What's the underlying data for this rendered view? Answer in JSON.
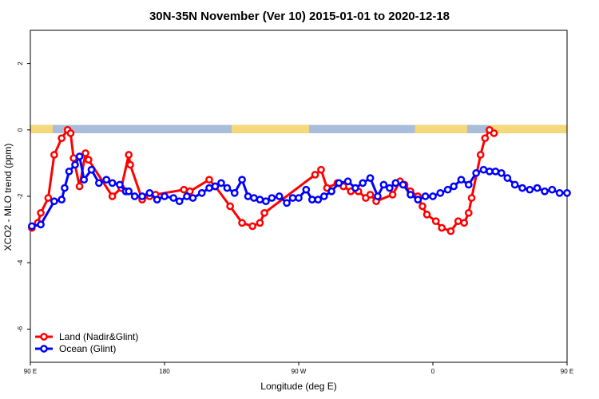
{
  "chart_data": {
    "type": "line",
    "title": "30N-35N November (Ver 10)   2015-01-01 to 2020-12-18",
    "xlabel": "Longitude (deg E)",
    "ylabel": "XCO2 - MLO trend (ppm)",
    "xlim": [
      90,
      450
    ],
    "ylim": [
      -7,
      3
    ],
    "x_ticks": [
      {
        "value": 90,
        "label": "90 E"
      },
      {
        "value": 180,
        "label": "180"
      },
      {
        "value": 270,
        "label": "90 W"
      },
      {
        "value": 360,
        "label": "0"
      },
      {
        "value": 450,
        "label": "90 E"
      },
      {
        "value": 540,
        "label": "180"
      }
    ],
    "y_ticks": [
      {
        "value": 2,
        "label": "2"
      },
      {
        "value": 0,
        "label": "0"
      },
      {
        "value": -2,
        "label": "-2"
      },
      {
        "value": -4,
        "label": "-4"
      },
      {
        "value": -6,
        "label": "-6"
      }
    ],
    "legend_position": "bottom-left",
    "grid": false,
    "surface_band": {
      "y_range": [
        -0.1,
        0.15
      ],
      "land_color": "#f5d87a",
      "ocean_color": "#a9bcd9",
      "land_segments": [
        [
          90,
          105
        ],
        [
          225,
          277
        ],
        [
          348,
          383
        ],
        [
          398,
          466
        ],
        [
          524,
          552
        ],
        [
          583,
          635
        ],
        [
          648,
          656
        ]
      ]
    },
    "series": [
      {
        "name": "Land (Nadir&Glint)",
        "color": "#ff0000",
        "x": [
          91,
          95,
          97,
          102,
          106,
          111,
          115,
          117,
          119,
          123,
          127,
          129,
          145,
          151,
          156,
          157,
          165,
          170,
          174,
          193,
          197,
          210,
          214,
          224,
          232,
          239,
          244,
          247,
          281,
          285,
          289,
          296,
          300,
          305,
          310,
          315,
          318,
          322,
          333,
          338,
          341,
          345,
          350,
          353,
          356,
          362,
          366,
          372,
          377,
          381,
          384,
          386,
          392,
          395,
          398,
          401
        ],
        "y": [
          -2.95,
          -2.8,
          -2.5,
          -2.05,
          -0.75,
          -0.25,
          0.0,
          -0.1,
          -0.85,
          -1.7,
          -0.7,
          -0.9,
          -2.0,
          -1.75,
          -0.75,
          -1.05,
          -2.1,
          -2.0,
          -1.95,
          -1.8,
          -1.85,
          -1.5,
          -1.7,
          -2.3,
          -2.8,
          -2.9,
          -2.8,
          -2.5,
          -1.35,
          -1.2,
          -1.75,
          -1.6,
          -1.7,
          -1.85,
          -1.85,
          -2.05,
          -1.95,
          -2.15,
          -1.95,
          -1.55,
          -1.65,
          -1.85,
          -2.0,
          -2.3,
          -2.55,
          -2.75,
          -2.95,
          -3.05,
          -2.75,
          -2.8,
          -2.5,
          -2.05,
          -0.75,
          -0.25,
          0.0,
          -0.1
        ]
      },
      {
        "name": "Ocean (Glint)",
        "color": "#0000ff",
        "x": [
          91,
          97,
          106,
          111,
          113,
          116,
          120,
          123,
          126,
          131,
          136,
          141,
          145,
          150,
          154,
          156,
          160,
          165,
          170,
          175,
          180,
          186,
          190,
          195,
          199,
          205,
          210,
          214,
          218,
          222,
          227,
          232,
          236,
          240,
          244,
          248,
          252,
          257,
          262,
          266,
          270,
          275,
          279,
          283,
          287,
          292,
          297,
          303,
          308,
          313,
          318,
          323,
          327,
          331,
          335,
          340,
          345,
          350,
          355,
          360,
          365,
          370,
          374,
          379,
          384,
          389,
          394,
          398,
          402,
          406,
          410,
          415,
          420,
          425,
          430,
          435,
          440,
          445,
          450
        ],
        "y": [
          -2.9,
          -2.85,
          -2.15,
          -2.1,
          -1.75,
          -1.25,
          -1.05,
          -0.8,
          -1.5,
          -1.2,
          -1.6,
          -1.5,
          -1.6,
          -1.65,
          -1.85,
          -1.85,
          -2.0,
          -2.0,
          -1.9,
          -2.1,
          -2.0,
          -2.05,
          -2.15,
          -2.0,
          -2.05,
          -1.9,
          -1.75,
          -1.7,
          -1.6,
          -1.75,
          -1.9,
          -1.5,
          -2.0,
          -2.05,
          -2.1,
          -2.15,
          -2.05,
          -2.0,
          -2.2,
          -2.05,
          -2.05,
          -1.8,
          -2.1,
          -2.1,
          -2.0,
          -1.85,
          -1.6,
          -1.55,
          -1.75,
          -1.6,
          -1.45,
          -2.0,
          -1.65,
          -1.75,
          -1.6,
          -1.65,
          -1.95,
          -2.1,
          -2.0,
          -2.0,
          -1.9,
          -1.8,
          -1.7,
          -1.5,
          -1.65,
          -1.3,
          -1.2,
          -1.25,
          -1.25,
          -1.3,
          -1.45,
          -1.65,
          -1.75,
          -1.8,
          -1.75,
          -1.85,
          -1.8,
          -1.9,
          -1.9
        ]
      }
    ]
  }
}
